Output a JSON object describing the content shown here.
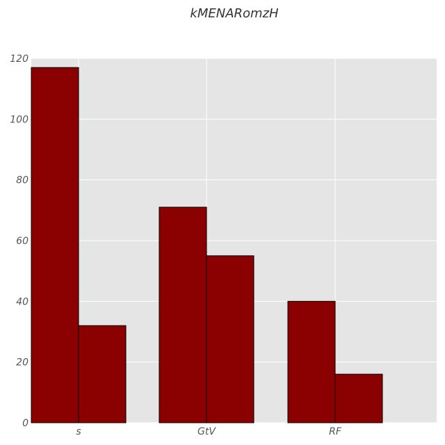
{
  "chart_data": {
    "type": "bar",
    "title": "kMENARomzH",
    "xlabel": "",
    "ylabel": "",
    "categories": [
      "s",
      "GtV",
      "RF"
    ],
    "series": [
      {
        "values": [
          117,
          71,
          40
        ]
      },
      {
        "values": [
          32,
          55,
          16
        ]
      }
    ],
    "ylim": [
      0,
      120
    ],
    "yticks": [
      0,
      20,
      40,
      60,
      80,
      100,
      120
    ],
    "grid": true,
    "legend": "none",
    "colors": {
      "bar_fill": "#8b0000",
      "bar_edge": "#000000",
      "plot_background": "#e5e5e5",
      "grid": "#ffffff"
    }
  }
}
